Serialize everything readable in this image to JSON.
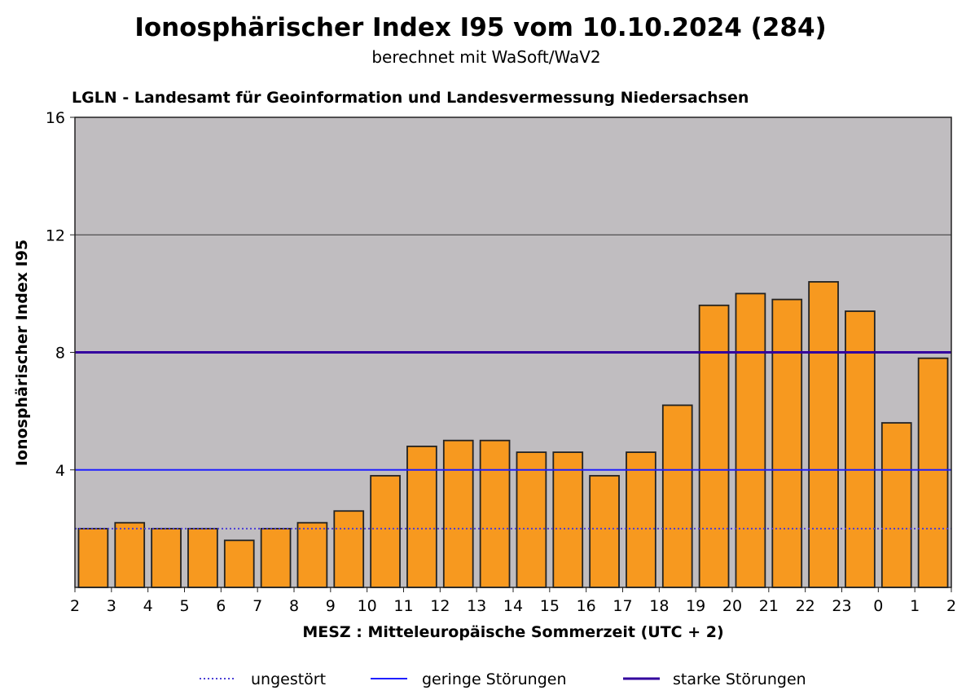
{
  "chart_data": {
    "type": "bar",
    "title": "Ionosphärischer Index I95 vom 10.10.2024 (284)",
    "subtitle": "berechnet mit WaSoft/WaV2",
    "source": "LGLN - Landesamt für Geoinformation und Landesvermessung Niedersachsen",
    "xlabel": "MESZ : Mitteleuropäische Sommerzeit (UTC + 2)",
    "ylabel": "Ionosphärischer Index I95",
    "ylim": [
      0,
      16
    ],
    "yticks": [
      "4",
      "8",
      "12",
      "16"
    ],
    "xticks": [
      "2",
      "3",
      "4",
      "5",
      "6",
      "7",
      "8",
      "9",
      "10",
      "11",
      "12",
      "13",
      "14",
      "15",
      "16",
      "17",
      "18",
      "19",
      "20",
      "21",
      "22",
      "23",
      "0",
      "1",
      "2"
    ],
    "values": [
      2.0,
      2.2,
      2.0,
      2.0,
      1.6,
      2.0,
      2.2,
      2.6,
      3.8,
      4.8,
      5.0,
      5.0,
      4.6,
      4.6,
      3.8,
      4.6,
      6.2,
      9.6,
      10.0,
      9.8,
      10.4,
      9.4,
      5.6,
      7.8
    ],
    "grid": "horizontal at 12",
    "reference_lines": [
      {
        "name": "ungestört",
        "y": 2,
        "style": "dotted",
        "color": "#4b3fd6"
      },
      {
        "name": "geringe Störungen",
        "y": 4,
        "style": "solid",
        "color": "#1f1fff"
      },
      {
        "name": "starke Störungen",
        "y": 8,
        "style": "solid",
        "color": "#33009e"
      }
    ],
    "legend_position": "bottom",
    "colors": {
      "bar": "#f7991f",
      "background": "#c0bdc0"
    }
  }
}
